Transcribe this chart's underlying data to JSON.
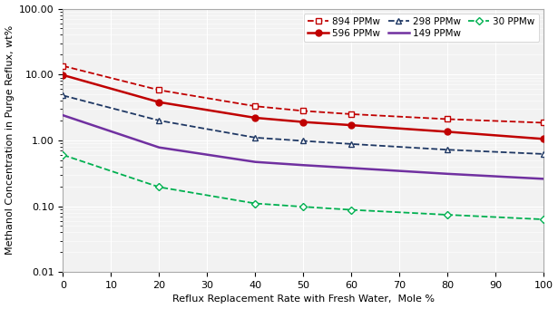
{
  "xlabel": "Reflux Replacement Rate with Fresh Water,  Mole %",
  "ylabel": "Methanol Concentration in Purge Reflux, wt%",
  "xlim": [
    0,
    100
  ],
  "ylim": [
    0.01,
    100.0
  ],
  "xticks": [
    0,
    10,
    20,
    30,
    40,
    50,
    60,
    70,
    80,
    90,
    100
  ],
  "ytick_vals": [
    0.01,
    0.1,
    1.0,
    10.0,
    100.0
  ],
  "ytick_labels": [
    "0.01",
    "0.10",
    "1.00",
    "10.00",
    "100.00"
  ],
  "series": [
    {
      "label": "894 PPMw",
      "color": "#C00000",
      "linestyle": "--",
      "marker": "s",
      "markerfacecolor": "white",
      "markersize": 5,
      "linewidth": 1.3,
      "x": [
        0,
        20,
        40,
        50,
        60,
        80,
        100
      ],
      "y": [
        13.5,
        5.8,
        3.3,
        2.8,
        2.5,
        2.1,
        1.85
      ]
    },
    {
      "label": "596 PPMw",
      "color": "#C00000",
      "linestyle": "-",
      "marker": "o",
      "markerfacecolor": "#C00000",
      "markersize": 5,
      "linewidth": 1.8,
      "x": [
        0,
        20,
        40,
        50,
        60,
        80,
        100
      ],
      "y": [
        9.8,
        3.8,
        2.2,
        1.9,
        1.7,
        1.35,
        1.05
      ]
    },
    {
      "label": "298 PPMw",
      "color": "#1F3864",
      "linestyle": "--",
      "marker": "^",
      "markerfacecolor": "white",
      "markersize": 5,
      "linewidth": 1.3,
      "x": [
        0,
        20,
        40,
        50,
        60,
        80,
        100
      ],
      "y": [
        4.8,
        2.0,
        1.1,
        0.98,
        0.88,
        0.72,
        0.62
      ]
    },
    {
      "label": "149 PPMw",
      "color": "#7030A0",
      "linestyle": "-",
      "marker": null,
      "markerfacecolor": null,
      "markersize": 0,
      "linewidth": 1.8,
      "x": [
        0,
        20,
        40,
        50,
        60,
        80,
        100
      ],
      "y": [
        2.4,
        0.78,
        0.47,
        0.42,
        0.38,
        0.31,
        0.26
      ]
    },
    {
      "label": "30 PPMw",
      "color": "#00B050",
      "linestyle": "--",
      "marker": "D",
      "markerfacecolor": "white",
      "markersize": 4,
      "linewidth": 1.3,
      "x": [
        0,
        20,
        40,
        50,
        60,
        80,
        100
      ],
      "y": [
        0.6,
        0.195,
        0.11,
        0.098,
        0.088,
        0.074,
        0.063
      ]
    }
  ],
  "legend_order": [
    0,
    1,
    2,
    3,
    4
  ],
  "background_color": "#ffffff",
  "plot_bg_color": "#f2f2f2",
  "grid_major_color": "#ffffff",
  "grid_minor_color": "#ffffff"
}
